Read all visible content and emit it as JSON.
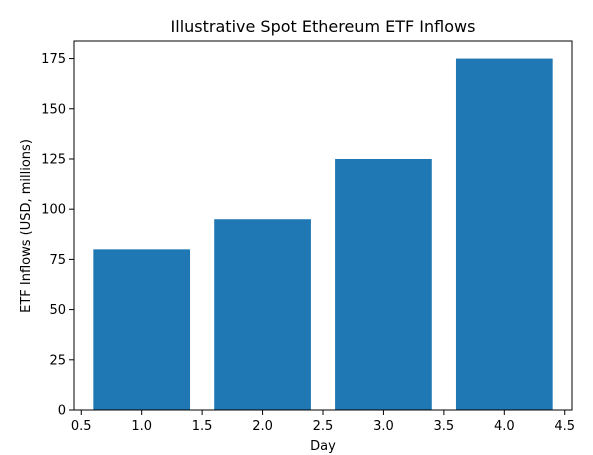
{
  "chart_data": {
    "type": "bar",
    "title": "Illustrative Spot Ethereum ETF Inflows",
    "xlabel": "Day",
    "ylabel": "ETF Inflows (USD, millions)",
    "x": [
      1,
      2,
      3,
      4
    ],
    "values": [
      80,
      95,
      125,
      175
    ],
    "bar_width": 0.8,
    "xlim": [
      0.44,
      4.56
    ],
    "ylim": [
      0,
      183.75
    ],
    "xticks": [
      0.5,
      1.0,
      1.5,
      2.0,
      2.5,
      3.0,
      3.5,
      4.0,
      4.5
    ],
    "xtick_labels": [
      "0.5",
      "1.0",
      "1.5",
      "2.0",
      "2.5",
      "3.0",
      "3.5",
      "4.0",
      "4.5"
    ],
    "yticks": [
      0,
      25,
      50,
      75,
      100,
      125,
      150,
      175
    ],
    "ytick_labels": [
      "0",
      "25",
      "50",
      "75",
      "100",
      "125",
      "150",
      "175"
    ],
    "bar_color": "#1f77b4",
    "grid": false,
    "legend": "none"
  }
}
